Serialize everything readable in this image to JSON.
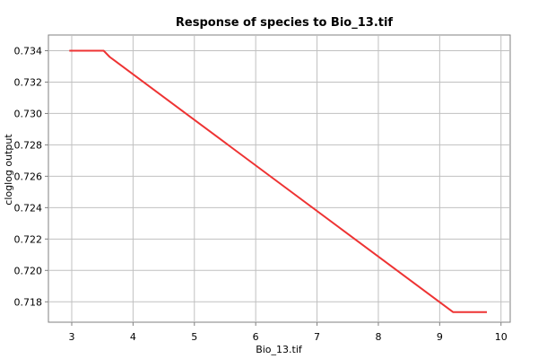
{
  "chart_data": {
    "type": "line",
    "title": "Response of species to Bio_13.tif",
    "xlabel": "Bio_13.tif",
    "ylabel": "cloglog output",
    "xlim": [
      2.62,
      10.15
    ],
    "ylim": [
      0.7167,
      0.735
    ],
    "x_ticks": [
      3,
      4,
      5,
      6,
      7,
      8,
      9,
      10
    ],
    "y_ticks": [
      0.718,
      0.72,
      0.722,
      0.724,
      0.726,
      0.728,
      0.73,
      0.732,
      0.734
    ],
    "x_tick_labels": [
      "3",
      "4",
      "5",
      "6",
      "7",
      "8",
      "9",
      "10"
    ],
    "y_tick_labels": [
      "0.718",
      "0.720",
      "0.722",
      "0.724",
      "0.726",
      "0.728",
      "0.730",
      "0.732",
      "0.734"
    ],
    "grid": true,
    "series": [
      {
        "color": "#ee3333",
        "x": [
          2.96,
          3.52,
          3.62,
          9.22,
          9.77
        ],
        "y": [
          0.734,
          0.734,
          0.7336,
          0.71734,
          0.71734
        ]
      }
    ]
  }
}
